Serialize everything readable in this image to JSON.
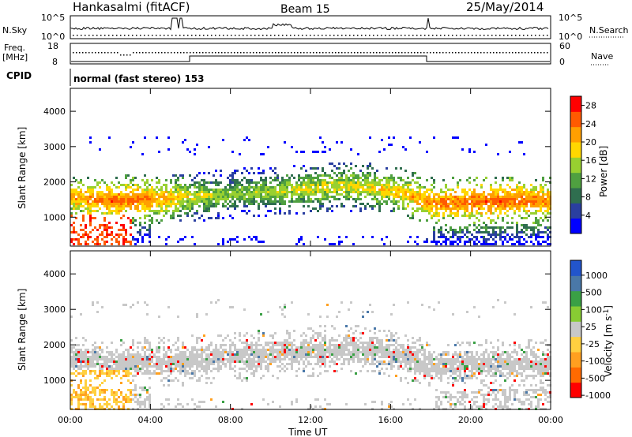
{
  "header": {
    "station": "Hankasalmi (fitACF)",
    "beam": "Beam 15",
    "date": "25/May/2014"
  },
  "noise_panel": {
    "left_label": "N.Sky",
    "right_label": "N.Search",
    "left_ticks": [
      "10^5",
      "10^0"
    ],
    "right_ticks": [
      "10^5",
      "10^0"
    ]
  },
  "freq_panel": {
    "left_label_1": "Freq.",
    "left_label_2": "[MHz]",
    "right_label": "Nave",
    "left_ticks": [
      "18",
      "8"
    ],
    "right_ticks": [
      "60",
      "0"
    ]
  },
  "cpid": {
    "label": "CPID",
    "value": "normal (fast stereo) 153"
  },
  "colors": {
    "power_scale": [
      "#0000ff",
      "#2a3fa0",
      "#2f6e4f",
      "#4fa040",
      "#98d030",
      "#ffd700",
      "#ff9f00",
      "#ff5a00",
      "#ff0000"
    ],
    "velocity_scale": [
      "#2255cc",
      "#4a78a8",
      "#3aa045",
      "#88cc33",
      "#c8c8c8",
      "#ffd040",
      "#ffa020",
      "#ff6a00",
      "#ff0000"
    ]
  },
  "chart_data": [
    {
      "type": "heatmap",
      "name": "power",
      "ylabel": "Slant Range [km]",
      "xlabel": "",
      "xlim": [
        "00:00",
        "24:00"
      ],
      "ylim": [
        180,
        4650
      ],
      "y_ticks": [
        "1000",
        "2000",
        "3000",
        "4000"
      ],
      "x_ticks": [
        "00:00",
        "04:00",
        "08:00",
        "12:00",
        "16:00",
        "20:00",
        "00:00"
      ],
      "colorbar_label": "Power [dB]",
      "colorbar_ticks": [
        "4",
        "8",
        "12",
        "16",
        "20",
        "24",
        "28"
      ],
      "colorbar_range": [
        0,
        30
      ],
      "dominant_echo_band": [
        {
          "hour": 0,
          "range_km": 1600,
          "value": 22
        },
        {
          "hour": 2,
          "range_km": 1500,
          "value": 26
        },
        {
          "hour": 4,
          "range_km": 1550,
          "value": 24
        },
        {
          "hour": 6,
          "range_km": 1600,
          "value": 18
        },
        {
          "hour": 8,
          "range_km": 1700,
          "value": 14
        },
        {
          "hour": 10,
          "range_km": 1750,
          "value": 16
        },
        {
          "hour": 12,
          "range_km": 1850,
          "value": 18
        },
        {
          "hour": 14,
          "range_km": 1900,
          "value": 18
        },
        {
          "hour": 16,
          "range_km": 1800,
          "value": 20
        },
        {
          "hour": 18,
          "range_km": 1450,
          "value": 24
        },
        {
          "hour": 20,
          "range_km": 1450,
          "value": 26
        },
        {
          "hour": 22,
          "range_km": 1500,
          "value": 26
        },
        {
          "hour": 24,
          "range_km": 1500,
          "value": 24
        }
      ]
    },
    {
      "type": "heatmap",
      "name": "velocity",
      "ylabel": "Slant Range [km]",
      "xlabel": "Time UT",
      "xlim": [
        "00:00",
        "24:00"
      ],
      "ylim": [
        180,
        4650
      ],
      "y_ticks": [
        "1000",
        "2000",
        "3000",
        "4000"
      ],
      "x_ticks": [
        "00:00",
        "04:00",
        "08:00",
        "12:00",
        "16:00",
        "20:00",
        "00:00"
      ],
      "colorbar_label": "Velocity [m s",
      "colorbar_label_sup": "-1",
      "colorbar_label_end": "]",
      "colorbar_ticks": [
        "1000",
        "500",
        "100",
        "25",
        "-25",
        "-100",
        "-500",
        "-1000"
      ]
    }
  ]
}
